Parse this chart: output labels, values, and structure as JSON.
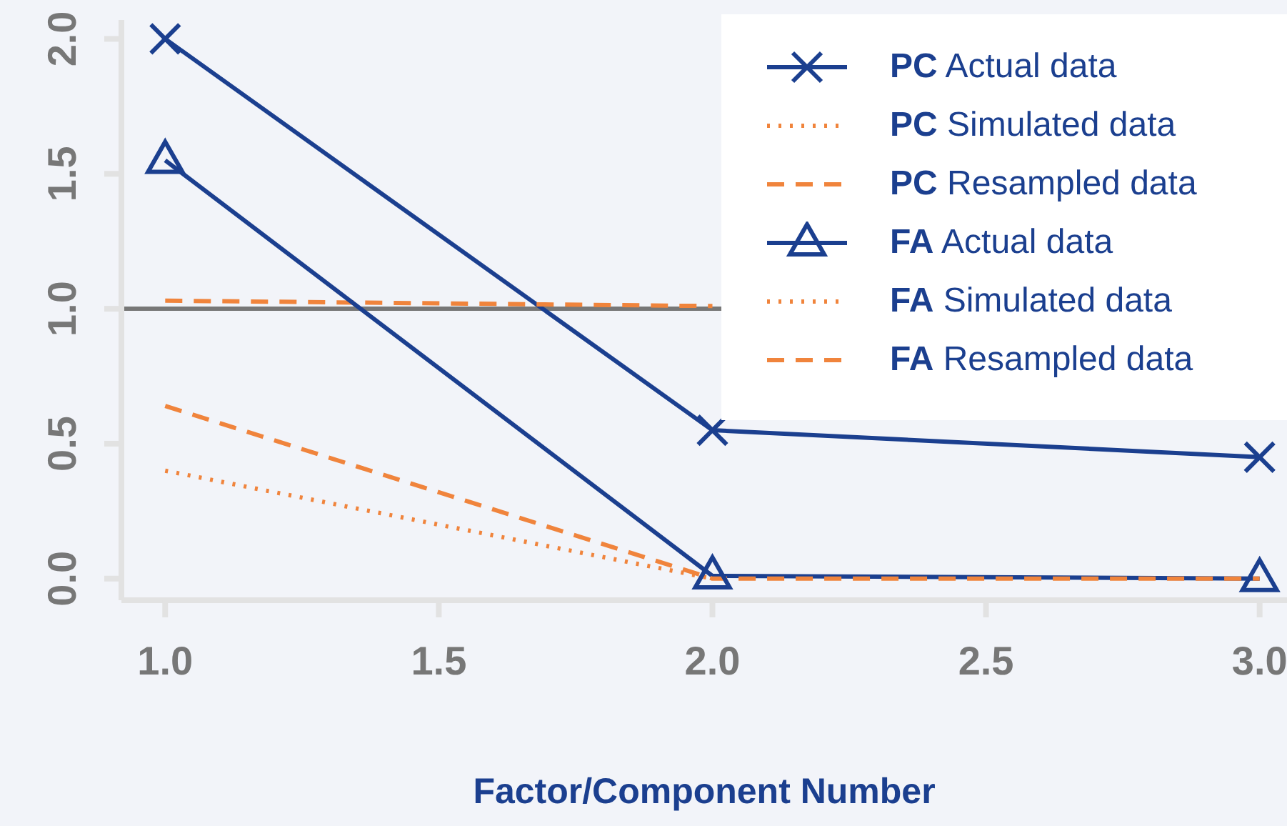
{
  "chart_data": {
    "type": "line",
    "xlabel": "Factor/Component Number",
    "x": [
      1,
      2,
      3
    ],
    "xlim": [
      0.92,
      3.05
    ],
    "xticks": [
      {
        "value": 1,
        "label": "1.0"
      },
      1.5,
      {
        "value": 2,
        "label": "2.0"
      },
      2.5,
      {
        "value": 3,
        "label": "3.0"
      }
    ],
    "ylim": [
      -0.08,
      2.07
    ],
    "yticks": [
      {
        "value": 0,
        "label": "0.0"
      },
      0.5,
      {
        "value": 1,
        "label": "1.0"
      },
      1.5,
      {
        "value": 2,
        "label": "2.0"
      }
    ],
    "series": [
      {
        "name": "PC Actual data",
        "color": "#1b3f8f",
        "values": [
          2.0,
          0.55,
          0.45
        ],
        "marker": "cross",
        "line_style": "solid"
      },
      {
        "name": "PC Simulated data",
        "color": "#f0843c",
        "values": [
          null,
          null,
          null
        ],
        "marker": "none",
        "line_style": "dotted"
      },
      {
        "name": "PC Resampled data",
        "color": "#f0843c",
        "values": [
          1.03,
          1.01,
          null
        ],
        "marker": "none",
        "line_style": "dashed"
      },
      {
        "name": "FA Actual data",
        "color": "#1b3f8f",
        "values": [
          1.55,
          0.01,
          0.0
        ],
        "marker": "triangle",
        "line_style": "solid"
      },
      {
        "name": "FA Simulated data",
        "color": "#f0843c",
        "values": [
          0.4,
          0.0,
          null
        ],
        "marker": "none",
        "line_style": "dotted"
      },
      {
        "name": "FA Resampled data",
        "color": "#f0843c",
        "values": [
          0.64,
          0.0,
          0.0
        ],
        "marker": "none",
        "line_style": "dashed"
      }
    ],
    "ref_lines": [
      {
        "axis": "y",
        "value": 1,
        "color": "#777777"
      }
    ],
    "grid": false,
    "legend": "top right"
  }
}
